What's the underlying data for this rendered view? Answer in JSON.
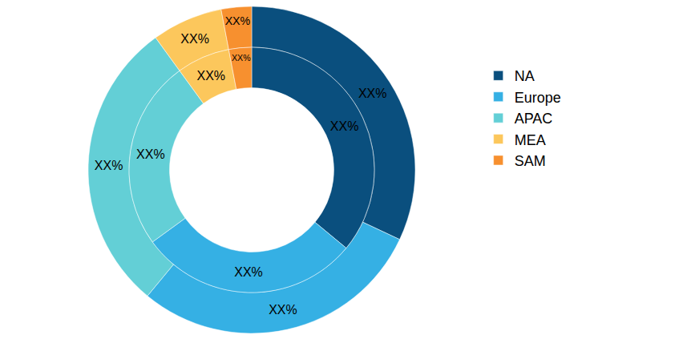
{
  "chart_data": {
    "type": "donut",
    "categories": [
      "NA",
      "Europe",
      "APAC",
      "MEA",
      "SAM"
    ],
    "colors": [
      "#0a4f7e",
      "#35b0e4",
      "#63cfd6",
      "#fcc75c",
      "#f7902f"
    ],
    "series": [
      {
        "values": [
          32,
          29,
          29,
          7,
          3
        ],
        "value_labels": [
          "XX%",
          "XX%",
          "XX%",
          "XX%",
          "XX%"
        ]
      },
      {
        "values": [
          36,
          29,
          25,
          7,
          3
        ],
        "value_labels": [
          "XX%",
          "XX%",
          "XX%",
          "XX%",
          "XX%"
        ]
      }
    ],
    "legend": "right"
  }
}
